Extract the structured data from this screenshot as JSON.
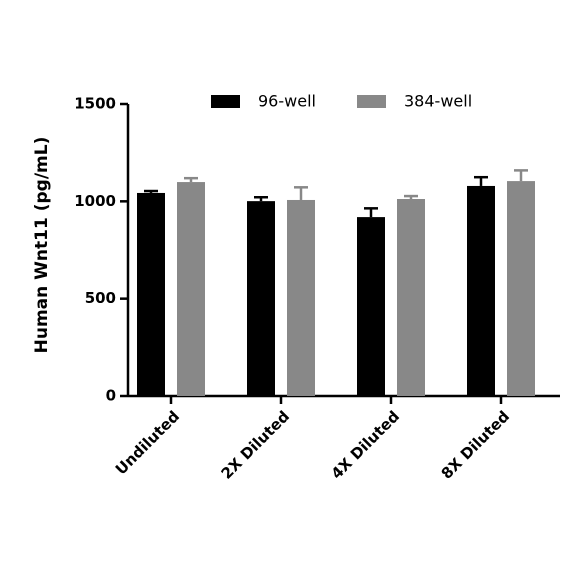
{
  "chart_data": {
    "type": "bar",
    "y_label": "Human Wnt11 (pg/mL)",
    "categories": [
      "Undiluted",
      "2X Diluted",
      "4X Diluted",
      "8X Diluted"
    ],
    "series": [
      {
        "name": "96-well",
        "color": "#000000",
        "values": [
          1043,
          1001,
          919,
          1079
        ],
        "errors": [
          10,
          20,
          45,
          45
        ]
      },
      {
        "name": "384-well",
        "color": "#888888",
        "values": [
          1099,
          1007,
          1012,
          1104
        ],
        "errors": [
          20,
          65,
          15,
          55
        ]
      }
    ],
    "ylim": [
      0,
      1500
    ],
    "yticks": [
      0,
      500,
      1000,
      1500
    ],
    "grid": false,
    "legend": "top"
  }
}
